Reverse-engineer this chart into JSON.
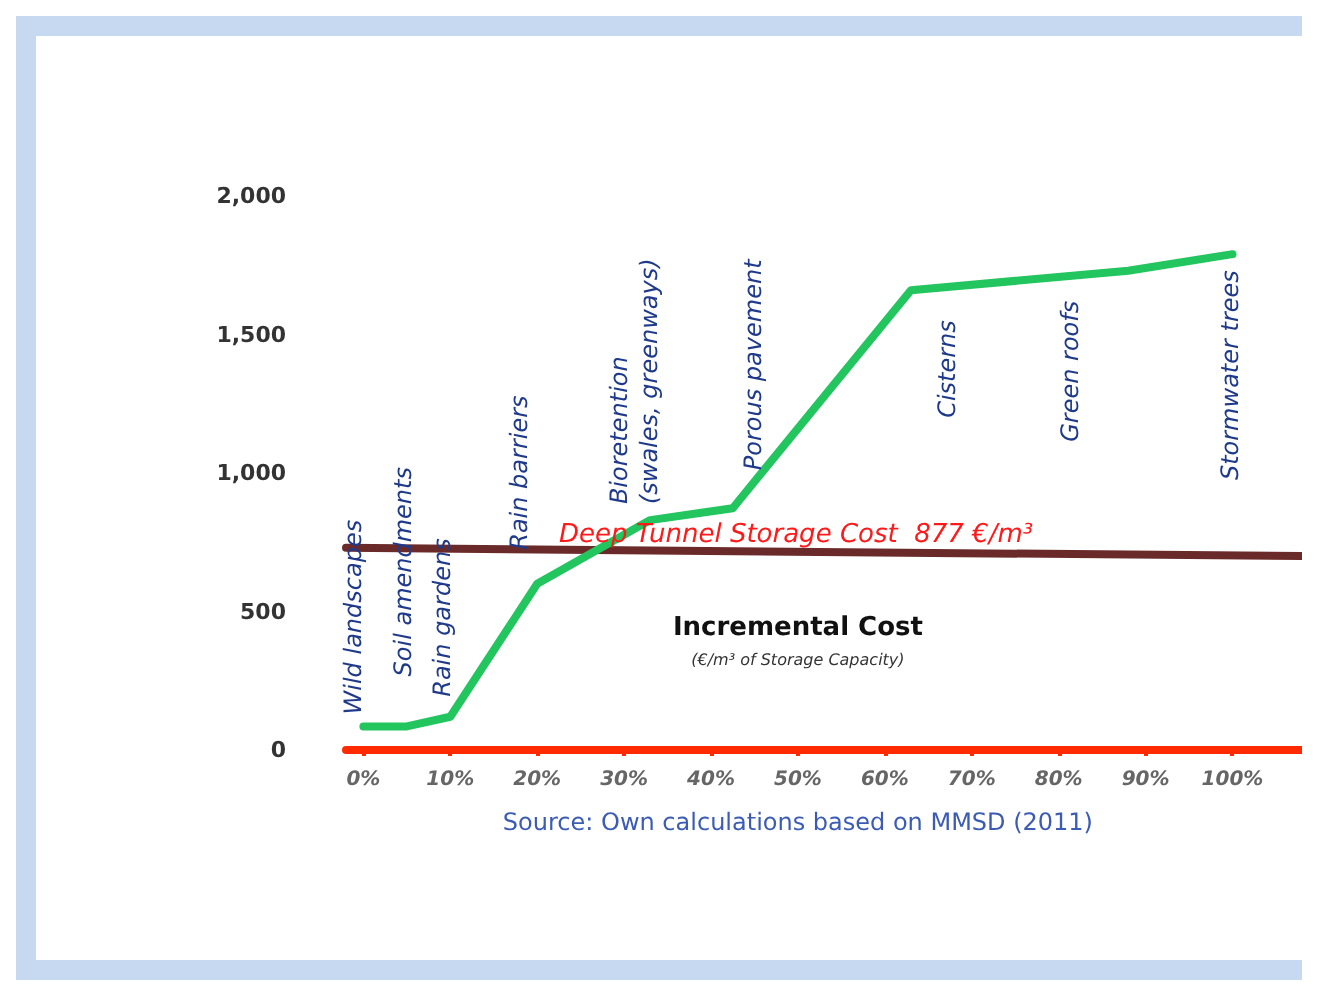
{
  "chart_data": {
    "type": "line",
    "xlim": [
      -2,
      108
    ],
    "ylim": [
      0,
      2000
    ],
    "xticks": [
      {
        "value": 0,
        "label": "0%"
      },
      {
        "value": 10,
        "label": "10%"
      },
      {
        "value": 20,
        "label": "20%"
      },
      {
        "value": 30,
        "label": "30%"
      },
      {
        "value": 40,
        "label": "40%"
      },
      {
        "value": 50,
        "label": "50%"
      },
      {
        "value": 60,
        "label": "60%"
      },
      {
        "value": 70,
        "label": "70%"
      },
      {
        "value": 80,
        "label": "80%"
      },
      {
        "value": 90,
        "label": "90%"
      },
      {
        "value": 100,
        "label": "100%"
      }
    ],
    "yticks": [
      0,
      500,
      {
        "value": 1000,
        "label": "1,000"
      },
      {
        "value": 1500,
        "label": "1,500"
      },
      {
        "value": 2000,
        "label": "2,000"
      }
    ],
    "series": [
      {
        "color": "#22c55e",
        "x": [
          0,
          5,
          10,
          20,
          33,
          42.5,
          63,
          88,
          100
        ],
        "values": [
          85,
          85,
          120,
          600,
          830,
          873,
          1660,
          1730,
          1790
        ]
      },
      {
        "name": "Deep Tunnel Storage Cost  877 €/m³",
        "color": "#6b2a2a",
        "x": [
          -2,
          108
        ],
        "values": [
          730,
          700
        ]
      }
    ],
    "annotations": [
      {
        "text": "Wild landscapes",
        "x": 0,
        "y": 85
      },
      {
        "text": "Soil amendments",
        "x": 5,
        "y": 85
      },
      {
        "text": "Rain gardens",
        "x": 10,
        "y": 120
      },
      {
        "text": "Rain barriers",
        "x": 20,
        "y": 600
      },
      {
        "text": "Bioretention\n(swales, greenways)",
        "x": 33,
        "y": 830
      },
      {
        "text": "Porous pavement",
        "x": 42.5,
        "y": 873
      },
      {
        "text": "Cisterns",
        "x": 63,
        "y": 1660
      },
      {
        "text": "Green roofs",
        "x": 88,
        "y": 1730
      },
      {
        "text": "Stormwater trees",
        "x": 100,
        "y": 1790
      },
      "(€/m³ of Storage Capacity)",
      "Source: Own calculations based on MMSD (2011)"
    ],
    "ylabel": "Incremental Cost",
    "grid": false,
    "legend": false,
    "marker": "none",
    "line_style": "solid"
  }
}
